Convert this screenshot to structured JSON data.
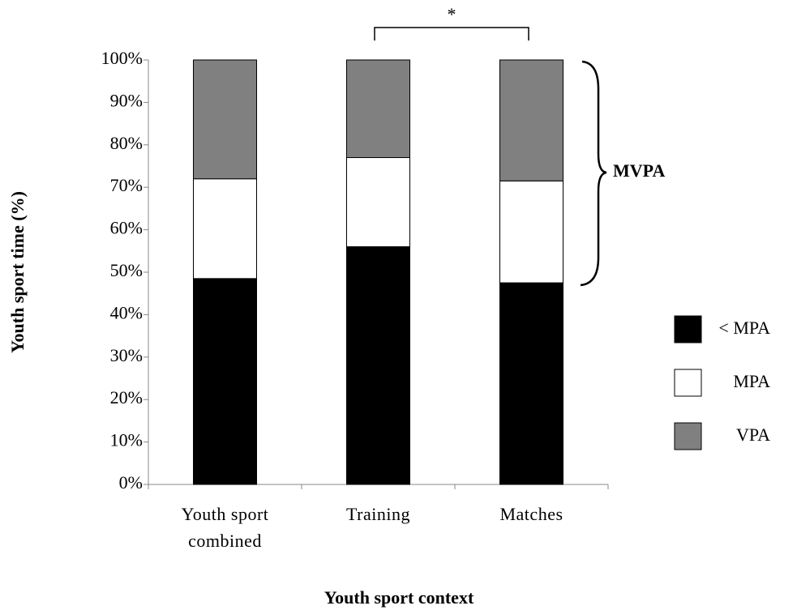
{
  "chart_data": {
    "type": "stacked_bar",
    "xlabel": "Youth sport context",
    "ylabel": "Youth sport time (%)",
    "categories": [
      "Youth sport combined",
      "Training",
      "Matches"
    ],
    "series": [
      {
        "name": "< MPA",
        "color": "#000000",
        "values": [
          48.5,
          56,
          47.5
        ]
      },
      {
        "name": "MPA",
        "color": "#ffffff",
        "values": [
          23.5,
          21,
          24
        ]
      },
      {
        "name": "VPA",
        "color": "#808080",
        "values": [
          28,
          23,
          28.5
        ]
      }
    ],
    "ylim": [
      0,
      100
    ],
    "yticks": [
      {
        "value": 0,
        "label": "0%"
      },
      {
        "value": 10,
        "label": "10%"
      },
      {
        "value": 20,
        "label": "20%"
      },
      {
        "value": 30,
        "label": "30%"
      },
      {
        "value": 40,
        "label": "40%"
      },
      {
        "value": 50,
        "label": "50%"
      },
      {
        "value": 60,
        "label": "60%"
      },
      {
        "value": 70,
        "label": "70%"
      },
      {
        "value": 80,
        "label": "80%"
      },
      {
        "value": 90,
        "label": "90%"
      },
      {
        "value": 100,
        "label": "100%"
      }
    ],
    "annotations": [
      "*",
      "MVPA"
    ],
    "legend": "right"
  }
}
